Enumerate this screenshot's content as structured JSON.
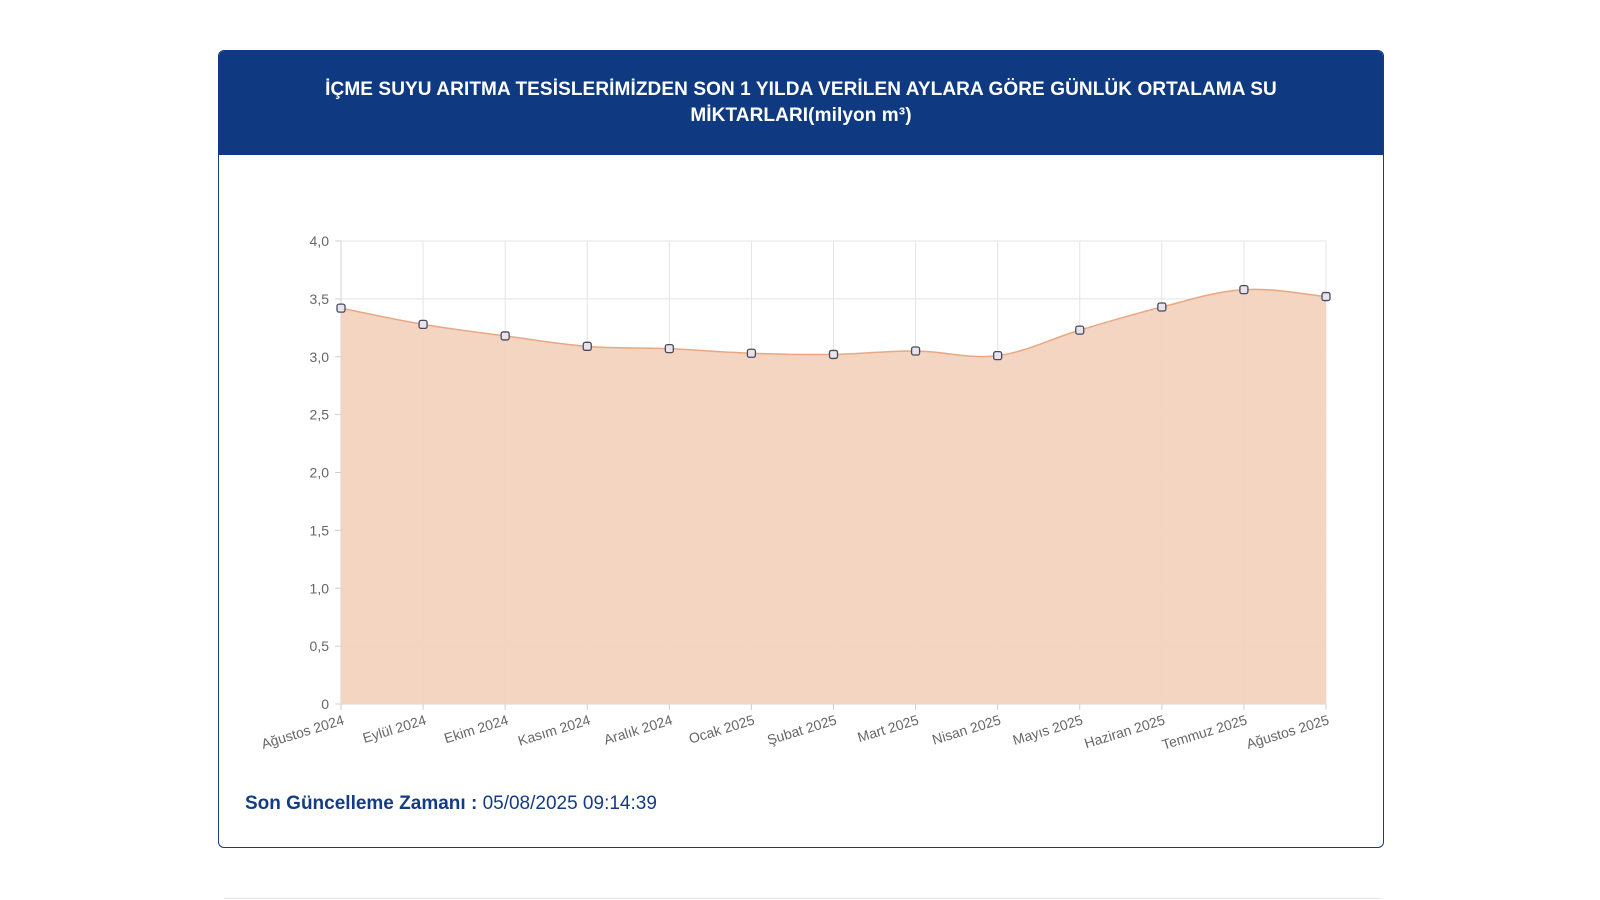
{
  "header": {
    "title": "İÇME SUYU ARITMA TESİSLERİMİZDEN SON 1 YILDA VERİLEN AYLARA GÖRE GÜNLÜK ORTALAMA SU MİKTARLARI(milyon m³)"
  },
  "footer": {
    "update_label": "Son Güncelleme Zamanı :",
    "update_value": "05/08/2025 09:14:39"
  },
  "colors": {
    "header_bg": "#0f3a82",
    "area_fill": "#f2d3be",
    "line": "#e9a882",
    "marker_stroke": "#4a4a5a"
  },
  "chart_data": {
    "type": "area",
    "title": "İÇME SUYU ARITMA TESİSLERİMİZDEN SON 1 YILDA VERİLEN AYLARA GÖRE GÜNLÜK ORTALAMA SU MİKTARLARI(milyon m³)",
    "categories": [
      "Ağustos 2024",
      "Eylül 2024",
      "Ekim 2024",
      "Kasım 2024",
      "Aralık 2024",
      "Ocak 2025",
      "Şubat 2025",
      "Mart 2025",
      "Nisan 2025",
      "Mayıs 2025",
      "Haziran 2025",
      "Temmuz 2025",
      "Ağustos 2025"
    ],
    "series": [
      {
        "values": [
          3.42,
          3.28,
          3.18,
          3.09,
          3.07,
          3.03,
          3.02,
          3.05,
          3.01,
          3.23,
          3.43,
          3.58,
          3.52
        ]
      }
    ],
    "ylim": [
      0,
      4.0
    ],
    "y_ticks": [
      "0",
      "0,5",
      "1,0",
      "1,5",
      "2,0",
      "2,5",
      "3,0",
      "3,5",
      "4,0"
    ],
    "xlabel": "",
    "ylabel": "",
    "grid": true,
    "legend": "none"
  }
}
